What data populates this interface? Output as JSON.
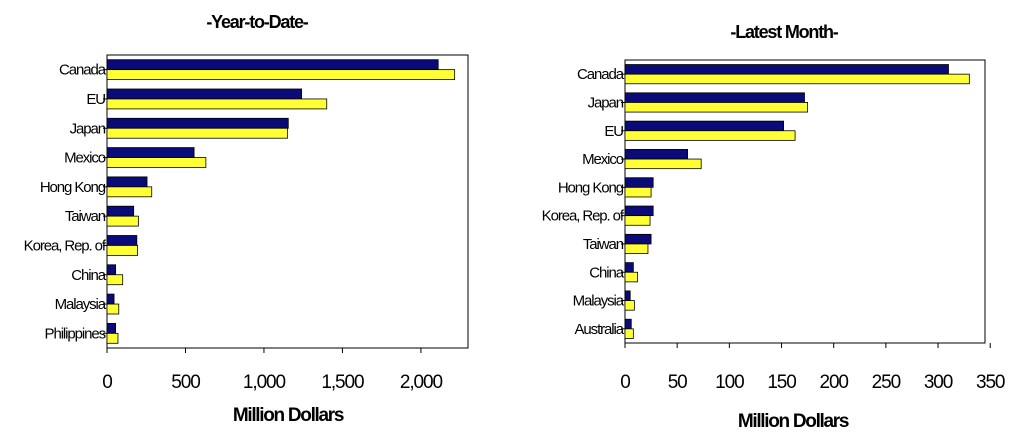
{
  "colors": {
    "series_a": "#0a0a78",
    "series_b": "#ffff33",
    "outline": "#000000"
  },
  "chart_data": [
    {
      "type": "bar",
      "orientation": "horizontal",
      "title": "-Year-to-Date-",
      "xlabel": "Million Dollars",
      "ylabel": "",
      "xlim": [
        0,
        2300
      ],
      "x_ticks": [
        0,
        500,
        1000,
        1500,
        2000
      ],
      "x_tick_labels": [
        "0",
        "500",
        "1,000",
        "1,500",
        "2,000"
      ],
      "grid": false,
      "legend": "none",
      "categories": [
        "Canada",
        "EU",
        "Japan",
        "Mexico",
        "Hong Kong",
        "Taiwan",
        "Korea, Rep. of",
        "China",
        "Malaysia",
        "Philippines"
      ],
      "series": [
        {
          "values": [
            2110,
            1240,
            1155,
            555,
            255,
            170,
            190,
            55,
            45,
            55
          ]
        },
        {
          "values": [
            2215,
            1400,
            1150,
            630,
            285,
            200,
            195,
            100,
            75,
            70
          ]
        }
      ]
    },
    {
      "type": "bar",
      "orientation": "horizontal",
      "title": "-Latest Month-",
      "xlabel": "Million Dollars",
      "ylabel": "",
      "xlim": [
        0,
        345
      ],
      "x_ticks": [
        0,
        50,
        100,
        150,
        200,
        250,
        300,
        350
      ],
      "x_tick_labels": [
        "0",
        "50",
        "100",
        "150",
        "200",
        "250",
        "300",
        "350"
      ],
      "grid": false,
      "legend": "none",
      "categories": [
        "Canada",
        "Japan",
        "EU",
        "Mexico",
        "Hong Kong",
        "Korea, Rep. of",
        "Taiwan",
        "China",
        "Malaysia",
        "Australia"
      ],
      "series": [
        {
          "values": [
            310,
            172,
            152,
            60,
            27,
            27,
            25,
            8,
            5,
            6
          ]
        },
        {
          "values": [
            330,
            175,
            163,
            73,
            25,
            24,
            22,
            12,
            9,
            8
          ]
        }
      ]
    }
  ]
}
